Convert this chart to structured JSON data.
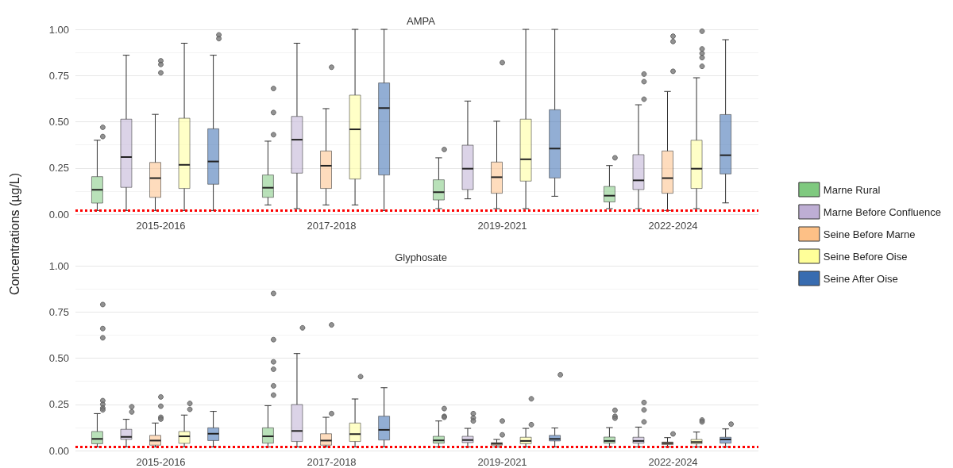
{
  "chart_data": [
    {
      "type": "box",
      "title": "AMPA",
      "ylabel": "Concentrations (µg/L)",
      "categories": [
        "2015-2016",
        "2017-2018",
        "2019-2021",
        "2022-2024"
      ],
      "ylim": [
        0,
        1
      ],
      "yticks": [
        {
          "value": 0,
          "label": "0.00"
        },
        {
          "value": 0.25,
          "label": "0.25"
        },
        {
          "value": 0.5,
          "label": "0.50"
        },
        {
          "value": 0.75,
          "label": "0.75"
        },
        {
          "value": 1,
          "label": "1.00"
        }
      ],
      "grid": "y",
      "legend": "right",
      "ref_lines": [
        {
          "axis": "y",
          "value": 0.02,
          "color": "#ff0000",
          "line_style": "dotted"
        }
      ],
      "series": [
        {
          "name": "Marne Rural",
          "color": "#7fc97f",
          "boxes": [
            {
              "low": 0.02,
              "q1": 0.06,
              "median": 0.132,
              "q3": 0.203,
              "high": 0.4,
              "outliers": [
                0.47,
                0.42
              ]
            },
            {
              "low": 0.05,
              "q1": 0.091,
              "median": 0.143,
              "q3": 0.212,
              "high": 0.395,
              "outliers": [
                0.68,
                0.55,
                0.43
              ]
            },
            {
              "low": 0.03,
              "q1": 0.077,
              "median": 0.119,
              "q3": 0.186,
              "high": 0.305,
              "outliers": [
                0.35
              ]
            },
            {
              "low": 0.03,
              "q1": 0.066,
              "median": 0.1,
              "q3": 0.15,
              "high": 0.263,
              "outliers": [
                0.305
              ]
            }
          ]
        },
        {
          "name": "Marne Before Confluence",
          "color": "#beaed4",
          "boxes": [
            {
              "low": 0.02,
              "q1": 0.145,
              "median": 0.309,
              "q3": 0.514,
              "high": 0.86
            },
            {
              "low": 0.03,
              "q1": 0.222,
              "median": 0.403,
              "q3": 0.529,
              "high": 0.925
            },
            {
              "low": 0.083,
              "q1": 0.133,
              "median": 0.246,
              "q3": 0.373,
              "high": 0.612
            },
            {
              "low": 0.03,
              "q1": 0.133,
              "median": 0.183,
              "q3": 0.322,
              "high": 0.592,
              "outliers": [
                0.758,
                0.717,
                0.622
              ]
            }
          ]
        },
        {
          "name": "Seine Before Marne",
          "color": "#fdc086",
          "boxes": [
            {
              "low": 0.02,
              "q1": 0.091,
              "median": 0.195,
              "q3": 0.28,
              "high": 0.54,
              "outliers": [
                0.83,
                0.81,
                0.765
              ]
            },
            {
              "low": 0.05,
              "q1": 0.139,
              "median": 0.262,
              "q3": 0.342,
              "high": 0.571,
              "outliers": [
                0.795
              ]
            },
            {
              "low": 0.03,
              "q1": 0.113,
              "median": 0.2,
              "q3": 0.282,
              "high": 0.503,
              "outliers": [
                0.82
              ]
            },
            {
              "low": 0.02,
              "q1": 0.113,
              "median": 0.195,
              "q3": 0.342,
              "high": 0.664,
              "outliers": [
                0.963,
                0.934,
                0.773
              ]
            }
          ]
        },
        {
          "name": "Seine Before Oise",
          "color": "#ffff99",
          "boxes": [
            {
              "low": 0.02,
              "q1": 0.139,
              "median": 0.267,
              "q3": 0.519,
              "high": 0.925
            },
            {
              "low": 0.05,
              "q1": 0.19,
              "median": 0.459,
              "q3": 0.644,
              "high": 1.0
            },
            {
              "low": 0.03,
              "q1": 0.179,
              "median": 0.297,
              "q3": 0.514,
              "high": 1.0
            },
            {
              "low": 0.03,
              "q1": 0.139,
              "median": 0.246,
              "q3": 0.4,
              "high": 0.738,
              "outliers": [
                0.99,
                0.894,
                0.87,
                0.847,
                0.8
              ]
            }
          ]
        },
        {
          "name": "Seine After Oise",
          "color": "#386cb0",
          "boxes": [
            {
              "low": 0.02,
              "q1": 0.162,
              "median": 0.285,
              "q3": 0.462,
              "high": 0.86,
              "outliers": [
                0.97,
                0.95
              ]
            },
            {
              "low": 0.02,
              "q1": 0.212,
              "median": 0.574,
              "q3": 0.71,
              "high": 1.0
            },
            {
              "low": 0.097,
              "q1": 0.196,
              "median": 0.355,
              "q3": 0.565,
              "high": 1.0
            },
            {
              "low": 0.061,
              "q1": 0.218,
              "median": 0.319,
              "q3": 0.539,
              "high": 0.944
            }
          ]
        }
      ]
    },
    {
      "type": "box",
      "title": "Glyphosate",
      "categories": [
        "2015-2016",
        "2017-2018",
        "2019-2021",
        "2022-2024"
      ],
      "ylim": [
        0,
        1
      ],
      "yticks": [
        {
          "value": 0,
          "label": "0.00"
        },
        {
          "value": 0.25,
          "label": "0.25"
        },
        {
          "value": 0.5,
          "label": "0.50"
        },
        {
          "value": 0.75,
          "label": "0.75"
        },
        {
          "value": 1,
          "label": "1.00"
        }
      ],
      "grid": "y",
      "ref_lines": [
        {
          "axis": "y",
          "value": 0.02,
          "color": "#ff0000",
          "line_style": "dotted"
        }
      ],
      "series": [
        {
          "color": "#7fc97f",
          "boxes": [
            {
              "low": 0.02,
              "q1": 0.037,
              "median": 0.063,
              "q3": 0.103,
              "high": 0.2,
              "outliers": [
                0.79,
                0.66,
                0.61,
                0.27,
                0.25,
                0.23,
                0.22
              ]
            },
            {
              "low": 0.02,
              "q1": 0.04,
              "median": 0.077,
              "q3": 0.123,
              "high": 0.243,
              "outliers": [
                0.85,
                0.6,
                0.48,
                0.44,
                0.35,
                0.3
              ]
            },
            {
              "low": 0.02,
              "q1": 0.04,
              "median": 0.055,
              "q3": 0.077,
              "high": 0.16,
              "outliers": [
                0.227,
                0.185,
                0.18
              ]
            },
            {
              "low": 0.02,
              "q1": 0.04,
              "median": 0.052,
              "q3": 0.073,
              "high": 0.124,
              "outliers": [
                0.218,
                0.185,
                0.175
              ]
            }
          ]
        },
        {
          "color": "#beaed4",
          "boxes": [
            {
              "low": 0.02,
              "q1": 0.06,
              "median": 0.074,
              "q3": 0.115,
              "high": 0.169,
              "outliers": [
                0.237,
                0.209
              ]
            },
            {
              "low": 0.02,
              "q1": 0.049,
              "median": 0.106,
              "q3": 0.249,
              "high": 0.525,
              "outliers": [
                0.664
              ]
            },
            {
              "low": 0.02,
              "q1": 0.043,
              "median": 0.057,
              "q3": 0.077,
              "high": 0.12,
              "outliers": [
                0.2,
                0.177,
                0.16
              ]
            },
            {
              "low": 0.02,
              "q1": 0.04,
              "median": 0.052,
              "q3": 0.072,
              "high": 0.127,
              "outliers": [
                0.26,
                0.22,
                0.155
              ]
            }
          ]
        },
        {
          "color": "#fdc086",
          "boxes": [
            {
              "low": 0.02,
              "q1": 0.029,
              "median": 0.054,
              "q3": 0.082,
              "high": 0.149,
              "outliers": [
                0.29,
                0.24,
                0.18,
                0.17
              ]
            },
            {
              "low": 0.02,
              "q1": 0.029,
              "median": 0.054,
              "q3": 0.091,
              "high": 0.18,
              "outliers": [
                0.68,
                0.2
              ]
            },
            {
              "low": 0.02,
              "q1": 0.029,
              "median": 0.037,
              "q3": 0.043,
              "high": 0.06,
              "outliers": [
                0.16,
                0.085
              ]
            },
            {
              "low": 0.02,
              "q1": 0.032,
              "median": 0.04,
              "q3": 0.046,
              "high": 0.07,
              "outliers": [
                0.09
              ]
            }
          ]
        },
        {
          "color": "#ffff99",
          "boxes": [
            {
              "low": 0.02,
              "q1": 0.039,
              "median": 0.077,
              "q3": 0.103,
              "high": 0.192,
              "outliers": [
                0.255,
                0.223
              ]
            },
            {
              "low": 0.02,
              "q1": 0.049,
              "median": 0.089,
              "q3": 0.149,
              "high": 0.279,
              "outliers": [
                0.4
              ]
            },
            {
              "low": 0.02,
              "q1": 0.037,
              "median": 0.052,
              "q3": 0.072,
              "high": 0.12,
              "outliers": [
                0.28,
                0.14
              ]
            },
            {
              "low": 0.02,
              "q1": 0.037,
              "median": 0.046,
              "q3": 0.06,
              "high": 0.1,
              "outliers": [
                0.165,
                0.155
              ]
            }
          ]
        },
        {
          "color": "#386cb0",
          "boxes": [
            {
              "low": 0.02,
              "q1": 0.054,
              "median": 0.091,
              "q3": 0.123,
              "high": 0.212
            },
            {
              "low": 0.02,
              "q1": 0.057,
              "median": 0.112,
              "q3": 0.186,
              "high": 0.34
            },
            {
              "low": 0.02,
              "q1": 0.052,
              "median": 0.063,
              "q3": 0.082,
              "high": 0.122,
              "outliers": [
                0.41
              ]
            },
            {
              "low": 0.02,
              "q1": 0.04,
              "median": 0.06,
              "q3": 0.072,
              "high": 0.117,
              "outliers": [
                0.143
              ]
            }
          ]
        }
      ]
    }
  ]
}
